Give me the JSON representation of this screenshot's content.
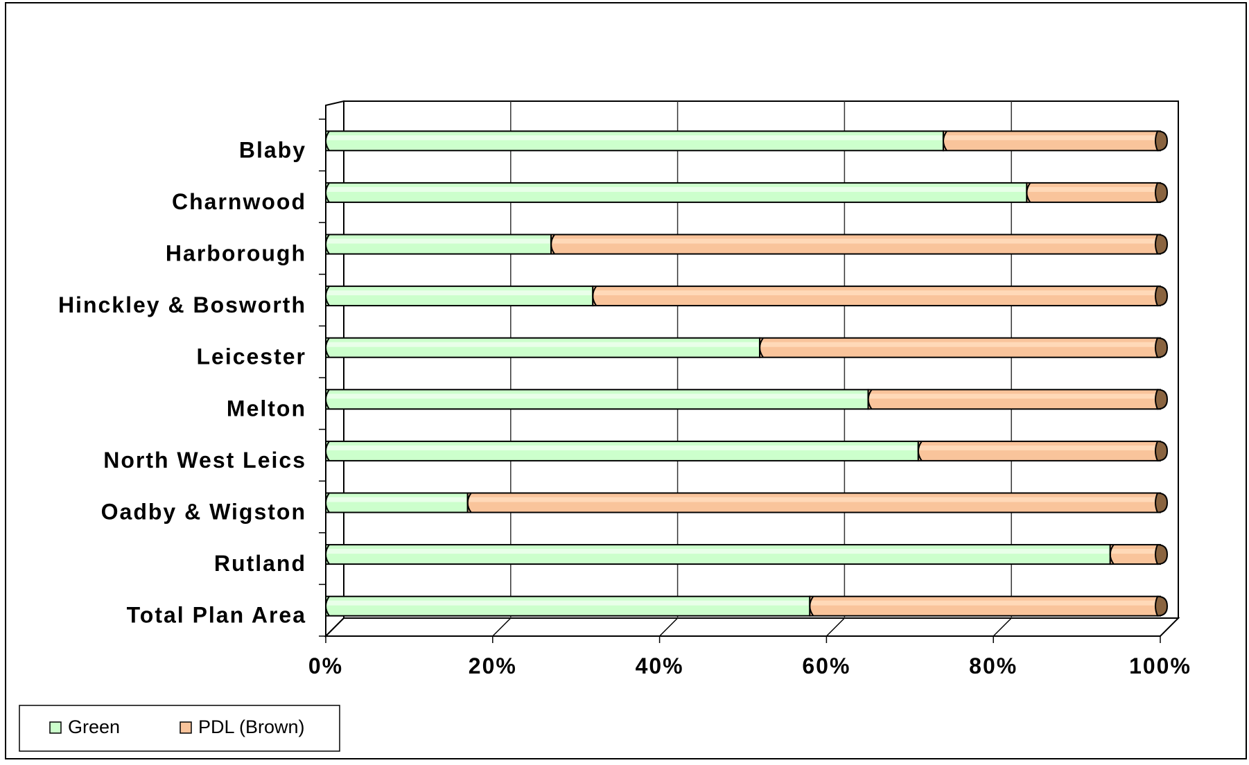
{
  "chart_data": {
    "type": "bar",
    "orientation": "horizontal",
    "stacked": "100%",
    "categories": [
      "Blaby",
      "Charnwood",
      "Harborough",
      "Hinckley & Bosworth",
      "Leicester",
      "Melton",
      "North West Leics",
      "Oadby & Wigston",
      "Rutland",
      "Total Plan Area"
    ],
    "series": [
      {
        "name": "Green",
        "values": [
          74,
          84,
          27,
          32,
          52,
          65,
          71,
          17,
          94,
          58
        ]
      },
      {
        "name": "PDL (Brown)",
        "values": [
          26,
          16,
          73,
          68,
          48,
          35,
          29,
          83,
          6,
          42
        ]
      }
    ],
    "xaxis": {
      "ticks": [
        "0%",
        "20%",
        "40%",
        "60%",
        "80%",
        "100%"
      ],
      "range": [
        0,
        100
      ]
    },
    "grid": true,
    "legend_position": "bottom-left",
    "colors": {
      "Green": "#ccffcc",
      "Green_highlight": "#e9ffe9",
      "PDL (Brown)": "#f9c49b",
      "PDL (Brown)_highlight": "#ffd9b8",
      "end_cap": "#8a6440",
      "grid": "#333333"
    }
  }
}
